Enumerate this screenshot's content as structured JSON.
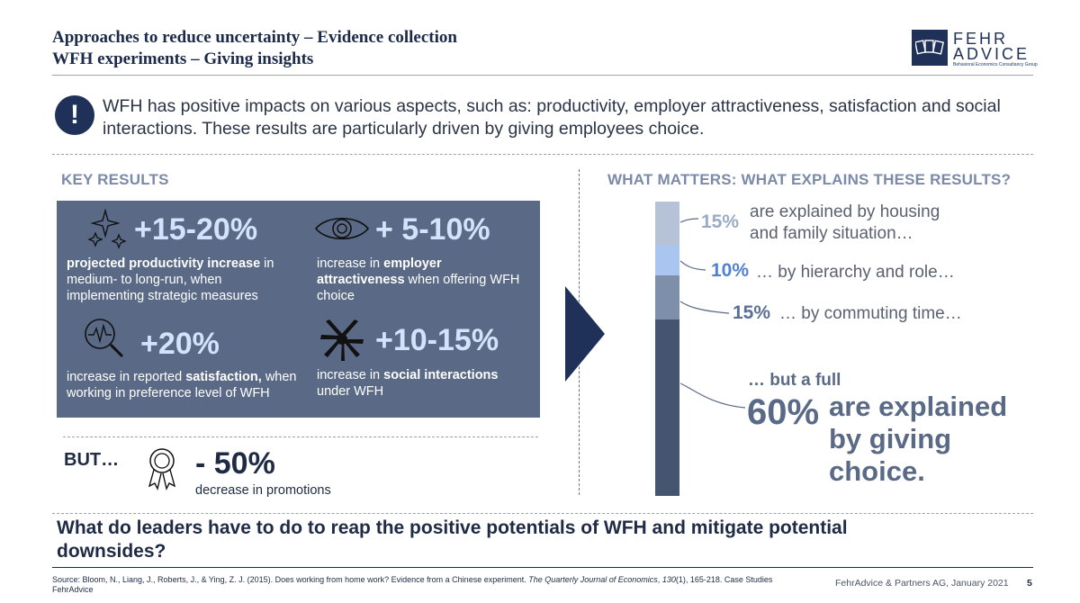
{
  "header": {
    "title_line1": "Approaches to reduce uncertainty – Evidence collection",
    "title_line2": "WFH experiments – Giving insights"
  },
  "logo": {
    "line1": "FEHR",
    "line2": "ADVICE",
    "tagline": "Behavioral Economics Consultancy Group"
  },
  "alert": {
    "icon": "!",
    "text": "WFH has positive impacts on various aspects, such as: productivity, employer attractiveness, satisfaction and social interactions. These results are particularly driven by giving employees choice."
  },
  "key_results": {
    "heading": "KEY RESULTS",
    "items": [
      {
        "icon": "sparkles-icon",
        "value": "+15-20%",
        "desc_bold": "projected productivity increase",
        "desc_rest": " in medium- to long-run, when implementing strategic measures"
      },
      {
        "icon": "eye-icon",
        "value": "+ 5-10%",
        "desc_pre": "increase in ",
        "desc_bold": "employer attractiveness",
        "desc_rest": " when offering WFH choice"
      },
      {
        "icon": "magnifier-heartbeat-icon",
        "value": "+20%",
        "desc_pre": "increase in reported ",
        "desc_bold": "satisfaction,",
        "desc_rest": " when working in preference level of WFH"
      },
      {
        "icon": "hands-together-icon",
        "value": "+10-15%",
        "desc_pre": "increase in ",
        "desc_bold": "social interactions",
        "desc_rest": " under WFH"
      }
    ],
    "but": {
      "label": "BUT…",
      "icon": "award-ribbon-icon",
      "value": "- 50%",
      "desc": "decrease in promotions"
    }
  },
  "what_matters": {
    "heading": "WHAT MATTERS: WHAT EXPLAINS THESE RESULTS?",
    "segments": [
      {
        "pct": "15%",
        "share": 15,
        "text": "are explained by housing\nand family situation…",
        "color": "#b6c2d8",
        "label_color": "#9aabc8"
      },
      {
        "pct": "10%",
        "share": 10,
        "text": "… by hierarchy and role…",
        "color": "#a9c6f0",
        "label_color": "#4f7fd6"
      },
      {
        "pct": "15%",
        "share": 15,
        "text": "… by commuting time…",
        "color": "#7e8faa",
        "label_color": "#5b6f96"
      },
      {
        "pct": "60%",
        "share": 60,
        "text": "are explained\nby giving\nchoice.",
        "color": "#45546f",
        "label_color": "#5a6a86"
      }
    ],
    "but_full": "… but a full"
  },
  "question": "What do leaders have to do to reap the positive potentials of WFH and mitigate potential downsides?",
  "footer": {
    "source_pre": "Source: Bloom, N., Liang, J., Roberts, J., & Ying, Z. J. (2015). Does working from home work? Evidence from a Chinese experiment. ",
    "source_journal": "The Quarterly Journal of Economics",
    "source_mid": ", ",
    "source_volume": "130",
    "source_post": "(1), 165-218. Case Studies FehrAdvice",
    "company": "FehrAdvice & Partners AG, January 2021",
    "page": "5"
  }
}
